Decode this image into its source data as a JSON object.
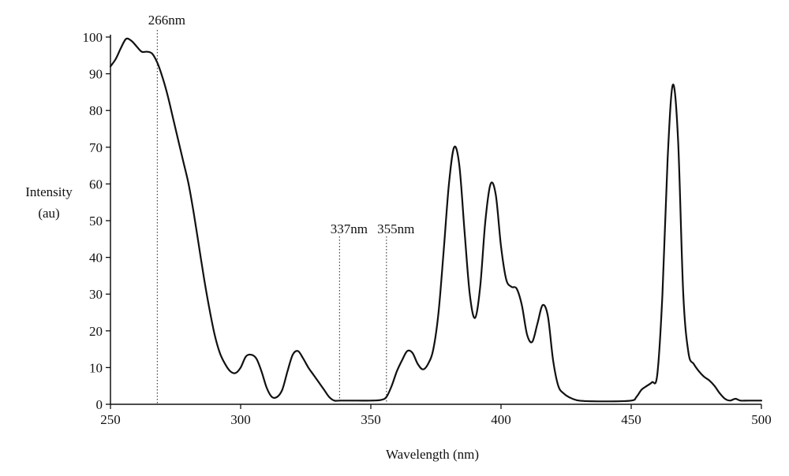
{
  "chart_data": {
    "type": "line",
    "title": "",
    "xlabel": "Wavelength (nm)",
    "ylabel_lines": [
      "Intensity",
      "(au)"
    ],
    "xlim": [
      250,
      500
    ],
    "ylim": [
      0,
      100
    ],
    "x_ticks": [
      250,
      300,
      350,
      400,
      450,
      500
    ],
    "y_ticks": [
      0,
      10,
      20,
      30,
      40,
      50,
      60,
      70,
      80,
      90,
      100
    ],
    "grid": false,
    "legend": "none",
    "line_color": "#111111",
    "annotations": [
      {
        "x": 268,
        "label": "266nm"
      },
      {
        "x": 338,
        "label": "337nm"
      },
      {
        "x": 356,
        "label": "355nm"
      }
    ],
    "series": [
      {
        "values": [
          [
            250,
            92
          ],
          [
            252,
            94
          ],
          [
            254,
            97
          ],
          [
            256,
            99.5
          ],
          [
            258,
            99
          ],
          [
            260,
            97.5
          ],
          [
            262,
            96
          ],
          [
            264,
            96
          ],
          [
            266,
            95.5
          ],
          [
            268,
            93
          ],
          [
            270,
            89
          ],
          [
            272,
            84
          ],
          [
            274,
            78
          ],
          [
            276,
            72
          ],
          [
            278,
            66
          ],
          [
            280,
            60
          ],
          [
            282,
            52
          ],
          [
            284,
            43
          ],
          [
            286,
            34
          ],
          [
            288,
            26
          ],
          [
            290,
            19
          ],
          [
            292,
            14
          ],
          [
            294,
            11
          ],
          [
            296,
            9
          ],
          [
            298,
            8.5
          ],
          [
            300,
            10
          ],
          [
            302,
            13
          ],
          [
            304,
            13.5
          ],
          [
            306,
            12.5
          ],
          [
            308,
            9
          ],
          [
            310,
            4.5
          ],
          [
            312,
            2
          ],
          [
            314,
            2
          ],
          [
            316,
            4
          ],
          [
            318,
            9
          ],
          [
            320,
            13.5
          ],
          [
            322,
            14.5
          ],
          [
            324,
            12.5
          ],
          [
            326,
            10
          ],
          [
            328,
            8
          ],
          [
            330,
            6
          ],
          [
            332,
            4
          ],
          [
            334,
            2
          ],
          [
            336,
            1
          ],
          [
            338,
            1
          ],
          [
            345,
            1
          ],
          [
            350,
            1
          ],
          [
            354,
            1.2
          ],
          [
            356,
            2
          ],
          [
            358,
            5
          ],
          [
            360,
            9
          ],
          [
            362,
            12
          ],
          [
            364,
            14.5
          ],
          [
            366,
            14
          ],
          [
            368,
            11
          ],
          [
            370,
            9.5
          ],
          [
            372,
            11
          ],
          [
            374,
            15
          ],
          [
            376,
            25
          ],
          [
            378,
            42
          ],
          [
            380,
            60
          ],
          [
            382,
            70
          ],
          [
            384,
            65
          ],
          [
            386,
            47
          ],
          [
            388,
            30
          ],
          [
            390,
            23.5
          ],
          [
            392,
            32
          ],
          [
            394,
            50
          ],
          [
            396,
            60
          ],
          [
            398,
            57
          ],
          [
            400,
            43
          ],
          [
            402,
            34
          ],
          [
            404,
            32
          ],
          [
            406,
            31.5
          ],
          [
            408,
            27
          ],
          [
            410,
            19
          ],
          [
            412,
            17
          ],
          [
            414,
            22
          ],
          [
            416,
            27
          ],
          [
            418,
            24
          ],
          [
            420,
            12
          ],
          [
            422,
            5
          ],
          [
            424,
            3
          ],
          [
            426,
            2
          ],
          [
            430,
            1
          ],
          [
            440,
            0.8
          ],
          [
            450,
            1
          ],
          [
            452,
            2
          ],
          [
            454,
            4
          ],
          [
            456,
            5
          ],
          [
            458,
            6
          ],
          [
            460,
            8
          ],
          [
            462,
            30
          ],
          [
            464,
            67
          ],
          [
            466,
            87
          ],
          [
            468,
            72
          ],
          [
            470,
            30
          ],
          [
            472,
            14
          ],
          [
            474,
            11
          ],
          [
            476,
            9
          ],
          [
            478,
            7.5
          ],
          [
            480,
            6.5
          ],
          [
            482,
            5
          ],
          [
            484,
            3
          ],
          [
            486,
            1.5
          ],
          [
            488,
            1
          ],
          [
            490,
            1.5
          ],
          [
            492,
            1
          ],
          [
            495,
            1
          ],
          [
            500,
            1
          ]
        ]
      }
    ]
  }
}
